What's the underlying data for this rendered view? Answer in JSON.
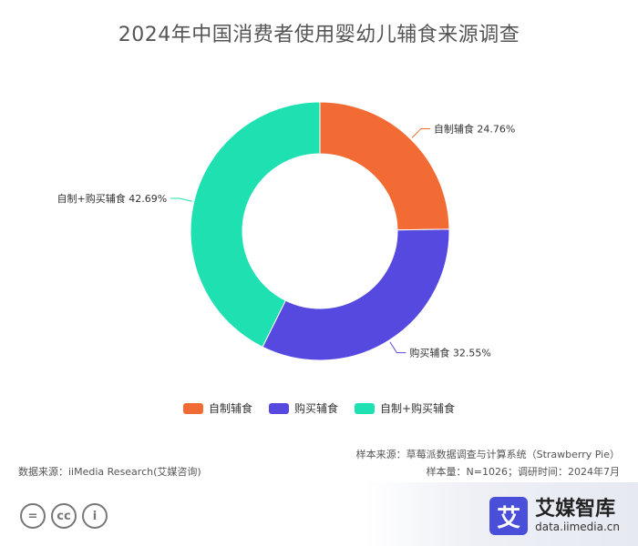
{
  "chart_data": {
    "type": "pie",
    "title": "2024年中国消费者使用婴幼儿辅食来源调查",
    "series": [
      {
        "name": "自制辅食",
        "value": 24.76,
        "label": "自制辅食 24.76%",
        "color": "#f26b34"
      },
      {
        "name": "购买辅食",
        "value": 32.55,
        "label": "购买辅食 32.55%",
        "color": "#5649e0"
      },
      {
        "name": "自制+购买辅食",
        "value": 42.69,
        "label": "自制+购买辅食 42.69%",
        "color": "#1ee0b0"
      }
    ],
    "legend_position": "bottom"
  },
  "footer": {
    "data_source": "数据来源：iiMedia Research(艾媒咨询)",
    "sample_source": "样本来源：草莓派数据调查与计算系统（Strawberry Pie）",
    "sample_info": "样本量：N=1026；调研时间：2024年7月"
  },
  "license": {
    "icons": [
      "equals-icon",
      "cc-icon",
      "person-icon"
    ],
    "glyphs": [
      "=",
      "cc",
      "i"
    ]
  },
  "brand": {
    "logo_char": "艾",
    "name": "艾媒智库",
    "url": "data.iimedia.cn"
  }
}
